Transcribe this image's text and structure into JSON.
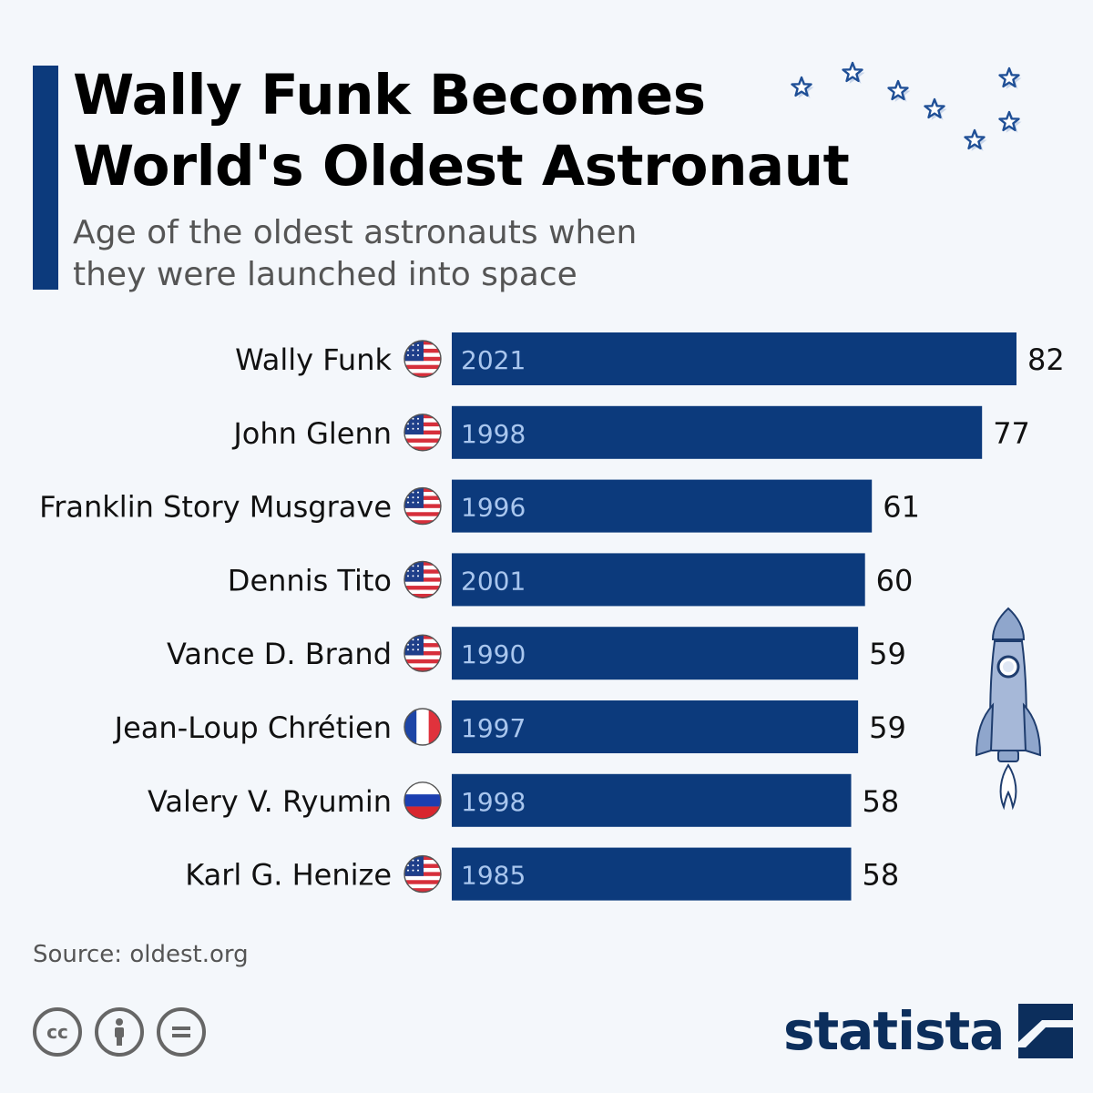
{
  "header": {
    "title_line1": "Wally Funk Becomes",
    "title_line2": "World's Oldest Astronaut",
    "subtitle_line1": "Age of the oldest astronauts when",
    "subtitle_line2": "they were launched into space"
  },
  "chart_data": {
    "type": "bar",
    "orientation": "horizontal",
    "title": "Wally Funk Becomes World's Oldest Astronaut",
    "subtitle": "Age of the oldest astronauts when they were launched into space",
    "categories": [
      "Wally Funk",
      "John Glenn",
      "Franklin Story Musgrave",
      "Dennis Tito",
      "Vance D. Brand",
      "Jean-Loup Chrétien",
      "Valery V. Ryumin",
      "Karl G. Henize"
    ],
    "values": [
      82,
      77,
      61,
      60,
      59,
      59,
      58,
      58
    ],
    "years": [
      "2021",
      "1998",
      "1996",
      "2001",
      "1990",
      "1997",
      "1998",
      "1985"
    ],
    "flags": [
      "us",
      "us",
      "us",
      "us",
      "us",
      "fr",
      "ru",
      "us"
    ],
    "xlim": [
      0,
      82
    ],
    "grid": false,
    "bar_color": "#0c3a7c",
    "year_label_color": "#a9c6ee"
  },
  "footer": {
    "source": "Source: oldest.org",
    "brand": "statista",
    "license_icons": [
      "cc-icon",
      "attribution-icon",
      "no-derivatives-icon"
    ]
  },
  "colors": {
    "accent": "#0c3a7c",
    "brand": "#0c2e5c",
    "star": "#1f4f96"
  }
}
